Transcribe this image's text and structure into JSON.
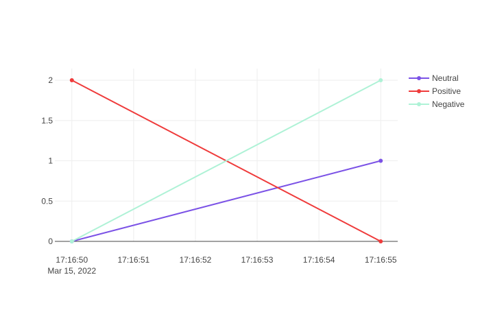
{
  "chart_data": {
    "type": "line",
    "title": "",
    "xlabel": "",
    "ylabel": "",
    "x": [
      "2022-03-15 17:16:50",
      "2022-03-15 17:16:55"
    ],
    "x_seconds": [
      50,
      55
    ],
    "xlim": [
      50,
      55
    ],
    "x_tick_values": [
      50,
      51,
      52,
      53,
      54,
      55
    ],
    "x_tick_labels": [
      "17:16:50",
      "17:16:51",
      "17:16:52",
      "17:16:53",
      "17:16:54",
      "17:16:55"
    ],
    "x_tick_sublabel": "Mar 15, 2022",
    "ylim": [
      0,
      2.2
    ],
    "y_tick_values": [
      0,
      0.5,
      1,
      1.5,
      2
    ],
    "y_tick_labels": [
      "0",
      "0.5",
      "1",
      "1.5",
      "2"
    ],
    "grid": true,
    "legend_position": "top-right",
    "series": [
      {
        "name": "Neutral",
        "values": [
          0,
          1
        ],
        "color": "#7b52e6"
      },
      {
        "name": "Positive",
        "values": [
          2,
          0
        ],
        "color": "#ef3b3b"
      },
      {
        "name": "Negative",
        "values": [
          0,
          2
        ],
        "color": "#aef2d6"
      }
    ]
  }
}
